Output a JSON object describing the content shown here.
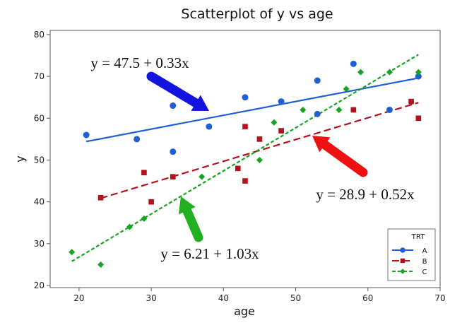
{
  "chart_data": {
    "type": "scatter",
    "title": "Scatterplot of y vs age",
    "xlabel": "age",
    "ylabel": "y",
    "xlim": [
      16,
      70
    ],
    "ylim": [
      19.5,
      81
    ],
    "xticks": [
      20,
      30,
      40,
      50,
      60,
      70
    ],
    "yticks": [
      20,
      30,
      40,
      50,
      60,
      70,
      80
    ],
    "grid": false,
    "legend": {
      "title": "TRT",
      "position": "bottom-right"
    },
    "series": [
      {
        "name": "A",
        "color": "#1f5fd6",
        "marker": "circle",
        "line_style": "solid",
        "points": [
          [
            21,
            56
          ],
          [
            28,
            55
          ],
          [
            33,
            63
          ],
          [
            33,
            52
          ],
          [
            38,
            58
          ],
          [
            43,
            65
          ],
          [
            48,
            64
          ],
          [
            53,
            69
          ],
          [
            53,
            61
          ],
          [
            58,
            73
          ],
          [
            63,
            62
          ],
          [
            67,
            70
          ]
        ],
        "fit": {
          "intercept": 47.5,
          "slope": 0.33,
          "x_range": [
            21,
            67
          ]
        }
      },
      {
        "name": "B",
        "color": "#b3121c",
        "marker": "square",
        "line_style": "dashed",
        "points": [
          [
            23,
            41
          ],
          [
            29,
            47
          ],
          [
            30,
            40
          ],
          [
            33,
            46
          ],
          [
            42,
            48
          ],
          [
            43,
            58
          ],
          [
            43,
            45
          ],
          [
            45,
            55
          ],
          [
            48,
            57
          ],
          [
            58,
            62
          ],
          [
            66,
            64
          ],
          [
            67,
            60
          ]
        ],
        "fit": {
          "intercept": 28.9,
          "slope": 0.52,
          "x_range": [
            23,
            67
          ]
        }
      },
      {
        "name": "C",
        "color": "#13a51f",
        "marker": "diamond",
        "line_style": "dotted",
        "points": [
          [
            19,
            28
          ],
          [
            23,
            25
          ],
          [
            27,
            34
          ],
          [
            29,
            36
          ],
          [
            37,
            46
          ],
          [
            45,
            50
          ],
          [
            47,
            59
          ],
          [
            51,
            62
          ],
          [
            56,
            62
          ],
          [
            57,
            67
          ],
          [
            59,
            71
          ],
          [
            63,
            71
          ],
          [
            67,
            71
          ]
        ],
        "fit": {
          "intercept": 6.21,
          "slope": 1.03,
          "x_range": [
            19,
            67
          ]
        }
      }
    ],
    "annotations": [
      {
        "text": "y = 47.5 + 0.33x",
        "arrow_color": "#1414e0"
      },
      {
        "text": "y = 28.9 + 0.52x",
        "arrow_color": "#ee1111"
      },
      {
        "text": "y = 6.21 + 1.03x",
        "arrow_color": "#22b022"
      }
    ]
  }
}
